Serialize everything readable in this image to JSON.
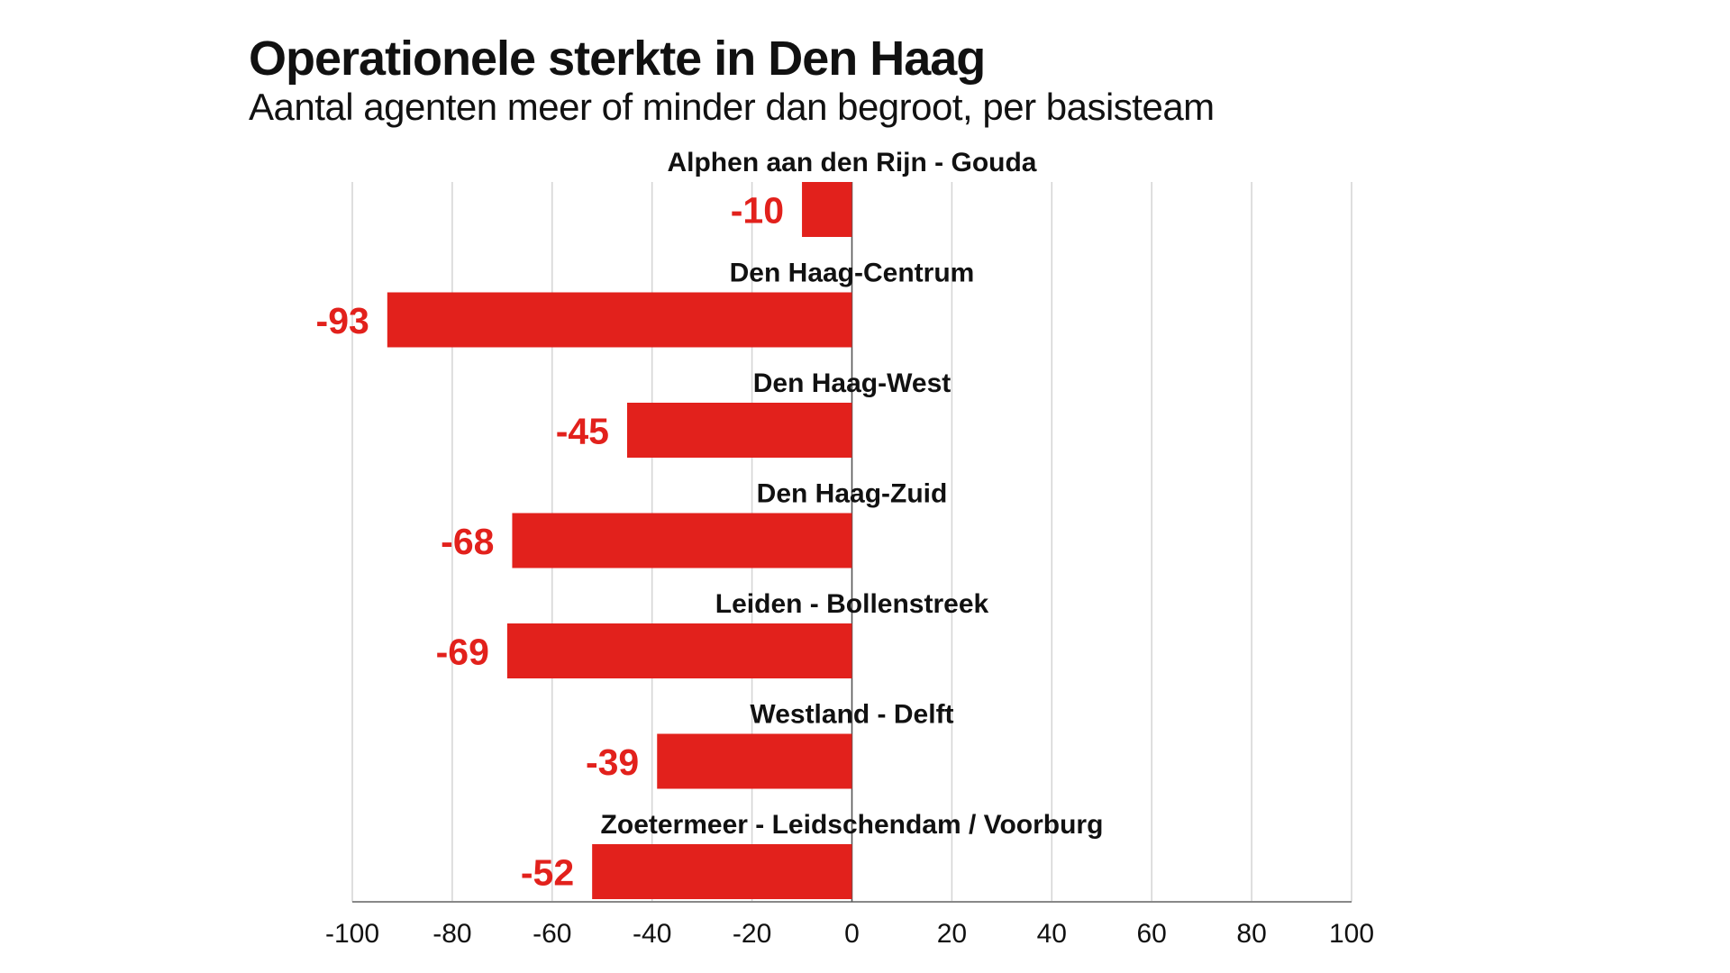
{
  "chart_data": {
    "type": "bar",
    "orientation": "horizontal",
    "title": "Operationele sterkte in Den Haag",
    "subtitle": "Aantal agenten meer of minder dan begroot, per basisteam",
    "categories": [
      "Alphen aan den Rijn - Gouda",
      "Den Haag-Centrum",
      "Den Haag-West",
      "Den Haag-Zuid",
      "Leiden - Bollenstreek",
      "Westland - Delft",
      "Zoetermeer - Leidschendam / Voorburg"
    ],
    "values": [
      -10,
      -93,
      -45,
      -68,
      -69,
      -39,
      -52
    ],
    "value_labels": [
      "-10",
      "-93",
      "-45",
      "-68",
      "-69",
      "-39",
      "-52"
    ],
    "xlim": [
      -100,
      100
    ],
    "xticks": [
      -100,
      -80,
      -60,
      -40,
      -20,
      0,
      20,
      40,
      60,
      80,
      100
    ],
    "xtick_labels": [
      "-100",
      "-80",
      "-60",
      "-40",
      "-20",
      "0",
      "20",
      "40",
      "60",
      "80",
      "100"
    ],
    "grid": true,
    "bar_color": "#e2211c",
    "label_color": "#e2211c"
  }
}
